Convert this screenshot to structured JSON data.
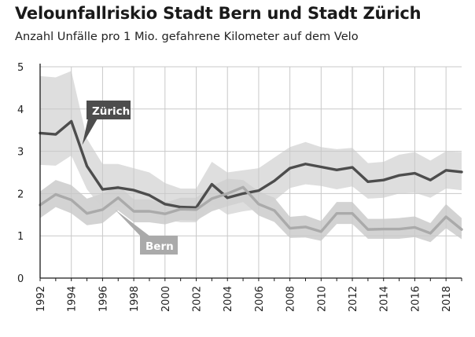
{
  "chart_title": "Velounfallriskio Stadt Bern und Stadt Zürich",
  "chart_subtitle": "Anzahl Unfälle pro 1 Mio. gefahrene Kilometer auf dem Velo",
  "colors": {
    "zurich_line": "#4d4d4d",
    "bern_line": "#aaaaaa",
    "zurich_band": "#dedede",
    "bern_band": "#d1d1d1",
    "grid": "#c9c9c9",
    "axis": "#1a1a1a"
  },
  "chart_data": {
    "type": "line",
    "title": "Velounfallriskio Stadt Bern und Stadt Zürich",
    "subtitle": "Anzahl Unfälle pro 1 Mio. gefahrene Kilometer auf dem Velo",
    "xlabel": "",
    "ylabel": "",
    "xlim": [
      1992,
      2019
    ],
    "ylim": [
      0,
      5
    ],
    "grid": true,
    "yticks": [
      0,
      1,
      2,
      3,
      4,
      5
    ],
    "xticks": [
      1992,
      1994,
      1996,
      1998,
      2000,
      2002,
      2004,
      2006,
      2008,
      2010,
      2012,
      2014,
      2016,
      2018
    ],
    "x": [
      1992,
      1993,
      1994,
      1995,
      1996,
      1997,
      1998,
      1999,
      2000,
      2001,
      2002,
      2003,
      2004,
      2005,
      2006,
      2007,
      2008,
      2009,
      2010,
      2011,
      2012,
      2013,
      2014,
      2015,
      2016,
      2017,
      2018,
      2019
    ],
    "series": [
      {
        "name": "Zürich",
        "values": [
          3.43,
          3.4,
          3.71,
          2.65,
          2.1,
          2.14,
          2.08,
          1.96,
          1.75,
          1.68,
          1.67,
          2.22,
          1.9,
          2.0,
          2.07,
          2.3,
          2.6,
          2.7,
          2.63,
          2.56,
          2.62,
          2.28,
          2.32,
          2.43,
          2.48,
          2.32,
          2.55,
          2.51
        ],
        "band_upper": [
          4.78,
          4.75,
          4.9,
          3.3,
          2.7,
          2.7,
          2.6,
          2.5,
          2.25,
          2.12,
          2.12,
          2.75,
          2.5,
          2.55,
          2.6,
          2.85,
          3.1,
          3.22,
          3.1,
          3.05,
          3.08,
          2.72,
          2.75,
          2.92,
          2.98,
          2.78,
          3.0,
          2.98
        ],
        "band_lower": [
          2.68,
          2.66,
          2.9,
          2.1,
          1.65,
          1.68,
          1.63,
          1.55,
          1.38,
          1.32,
          1.32,
          1.75,
          1.5,
          1.58,
          1.63,
          1.83,
          2.13,
          2.22,
          2.18,
          2.1,
          2.17,
          1.88,
          1.9,
          2.0,
          2.02,
          1.9,
          2.12,
          2.08
        ]
      },
      {
        "name": "Bern",
        "values": [
          1.73,
          1.98,
          1.85,
          1.53,
          1.62,
          1.9,
          1.58,
          1.58,
          1.52,
          1.63,
          1.62,
          1.88,
          2.0,
          2.15,
          1.75,
          1.6,
          1.18,
          1.21,
          1.1,
          1.53,
          1.53,
          1.15,
          1.16,
          1.16,
          1.2,
          1.06,
          1.45,
          1.15
        ],
        "band_upper": [
          2.05,
          2.32,
          2.2,
          1.88,
          2.0,
          2.2,
          1.86,
          1.86,
          1.78,
          1.9,
          1.9,
          2.18,
          2.35,
          2.32,
          2.05,
          1.9,
          1.45,
          1.48,
          1.35,
          1.8,
          1.8,
          1.4,
          1.4,
          1.42,
          1.46,
          1.3,
          1.75,
          1.42
        ],
        "band_lower": [
          1.42,
          1.68,
          1.53,
          1.25,
          1.3,
          1.6,
          1.32,
          1.32,
          1.27,
          1.37,
          1.36,
          1.58,
          1.7,
          1.8,
          1.48,
          1.33,
          0.95,
          0.96,
          0.88,
          1.28,
          1.28,
          0.93,
          0.93,
          0.93,
          0.97,
          0.85,
          1.18,
          0.92
        ]
      }
    ],
    "annotations": [
      {
        "text": "Zürich",
        "series": "Zürich",
        "x": 1995
      },
      {
        "text": "Bern",
        "series": "Bern",
        "x": 1998
      }
    ]
  }
}
